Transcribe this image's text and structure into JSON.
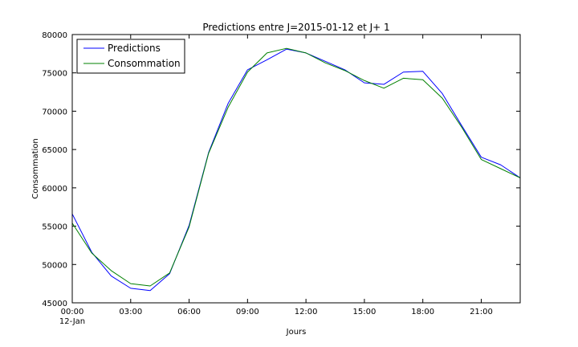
{
  "chart_data": {
    "type": "line",
    "title": "Predictions entre J=2015-01-12 et J+ 1",
    "xlabel": "Jours",
    "ylabel": "Consommation",
    "x": [
      0,
      1,
      2,
      3,
      4,
      5,
      6,
      7,
      8,
      9,
      10,
      11,
      12,
      13,
      14,
      15,
      16,
      17,
      18,
      19,
      20,
      21,
      22,
      23
    ],
    "x_unit": "hours from 2015-01-12 00:00",
    "xlim": [
      0,
      23
    ],
    "ylim": [
      45000,
      80000
    ],
    "xticks": [
      {
        "value": 0,
        "label": "00:00",
        "sublabel": "12-Jan"
      },
      {
        "value": 3,
        "label": "03:00"
      },
      {
        "value": 6,
        "label": "06:00"
      },
      {
        "value": 9,
        "label": "09:00"
      },
      {
        "value": 12,
        "label": "12:00"
      },
      {
        "value": 15,
        "label": "15:00"
      },
      {
        "value": 18,
        "label": "18:00"
      },
      {
        "value": 21,
        "label": "21:00"
      }
    ],
    "yticks": [
      45000,
      50000,
      55000,
      60000,
      65000,
      70000,
      75000,
      80000
    ],
    "grid": false,
    "legend": "top-left",
    "series": [
      {
        "name": "Predictions",
        "color": "#0000ff",
        "values": [
          56600,
          51600,
          48500,
          46900,
          46600,
          48800,
          55100,
          64600,
          71000,
          75400,
          76700,
          78100,
          77600,
          76500,
          75400,
          73700,
          73500,
          75100,
          75200,
          72300,
          68100,
          64000,
          63000,
          61300
        ]
      },
      {
        "name": "Consommation",
        "color": "#008000",
        "values": [
          55400,
          51500,
          49200,
          47500,
          47200,
          48900,
          54900,
          64500,
          70500,
          75100,
          77600,
          78200,
          77600,
          76300,
          75300,
          74000,
          73000,
          74300,
          74100,
          71700,
          67900,
          63700,
          62500,
          61300
        ]
      }
    ]
  }
}
